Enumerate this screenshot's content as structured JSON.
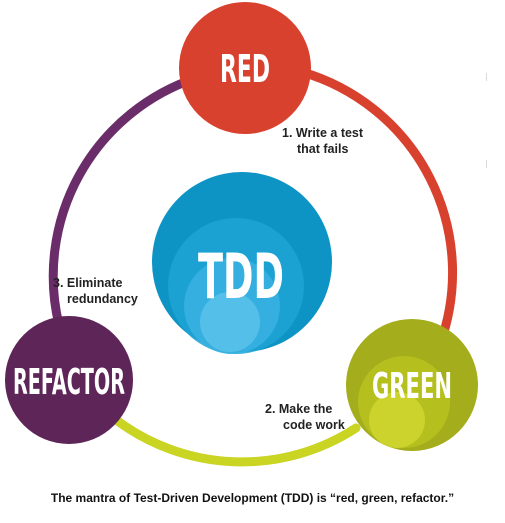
{
  "nodes": {
    "red": {
      "label": "RED",
      "color": "#d9412f"
    },
    "green": {
      "label": "GREEN",
      "color": "#a4ad1b"
    },
    "refactor": {
      "label": "REFACTOR",
      "color": "#5e2558"
    },
    "center": {
      "label": "TDD",
      "color": "#0d93c4"
    }
  },
  "steps": [
    {
      "lines": [
        "1. Write a test",
        "that fails"
      ]
    },
    {
      "lines": [
        "2. Make the",
        "code work"
      ]
    },
    {
      "lines": [
        "3. Eliminate",
        "redundancy"
      ]
    }
  ],
  "ring_colors": {
    "red_to_green": "#d9412f",
    "green_to_refactor": "#c9d423",
    "refactor_to_red": "#6a2d6a"
  },
  "caption": "The mantra of Test-Driven Development (TDD) is “red, green, refactor.”"
}
